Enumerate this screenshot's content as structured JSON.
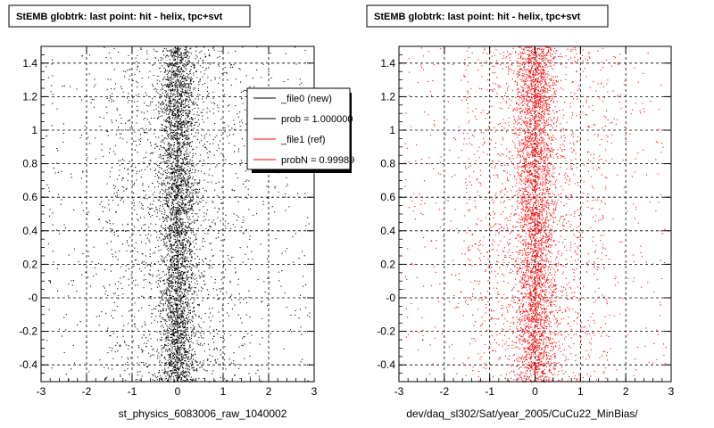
{
  "chart_data": [
    {
      "type": "scatter",
      "title": "StEMB globtrk: last point: hit - helix, tpc+svt",
      "xlabel": "st_physics_6083006_raw_1040002",
      "ylabel": "",
      "xlim": [
        -3,
        3
      ],
      "ylim": [
        -0.5,
        1.5
      ],
      "xticks": [
        "-3",
        "-2",
        "-1",
        "0",
        "1",
        "2",
        "3"
      ],
      "yticks": [
        "-0.4",
        "-0.2",
        "-0",
        "0.2",
        "0.4",
        "0.6",
        "0.8",
        "1",
        "1.2",
        "1.4"
      ],
      "grid": true,
      "series": [
        {
          "name": "_file0 (new)",
          "color": "#000000",
          "distribution": {
            "x_center": 0.0,
            "x_core_sigma": 0.22,
            "x_tail_range": [
              -2.9,
              2.9
            ],
            "y_range": [
              -0.5,
              1.5
            ]
          }
        }
      ],
      "legend": {
        "placement": "top-right",
        "entries": [
          {
            "label": "_file0 (new)",
            "color": "#000000"
          },
          {
            "label": "prob = 1.000000",
            "color": "#000000"
          },
          {
            "label": "_file1 (ref)",
            "color": "#ff0000"
          },
          {
            "label": "probN = 0.99989",
            "color": "#ff0000"
          }
        ]
      }
    },
    {
      "type": "scatter",
      "title": "StEMB globtrk: last point: hit - helix, tpc+svt",
      "xlabel": "dev/daq_sl302/Sat/year_2005/CuCu22_MinBias/",
      "ylabel": "",
      "xlim": [
        -3,
        3
      ],
      "ylim": [
        -0.5,
        1.5
      ],
      "xticks": [
        "-3",
        "-2",
        "-1",
        "0",
        "1",
        "2",
        "3"
      ],
      "yticks": [
        "-0.4",
        "-0.2",
        "-0",
        "0.2",
        "0.4",
        "0.6",
        "0.8",
        "1",
        "1.2",
        "1.4"
      ],
      "grid": true,
      "series": [
        {
          "name": "_file1 (ref)",
          "color": "#ff0000",
          "distribution": {
            "x_center": 0.0,
            "x_core_sigma": 0.24,
            "x_tail_range": [
              -2.9,
              2.9
            ],
            "y_range": [
              -0.5,
              1.5
            ]
          }
        }
      ]
    }
  ]
}
